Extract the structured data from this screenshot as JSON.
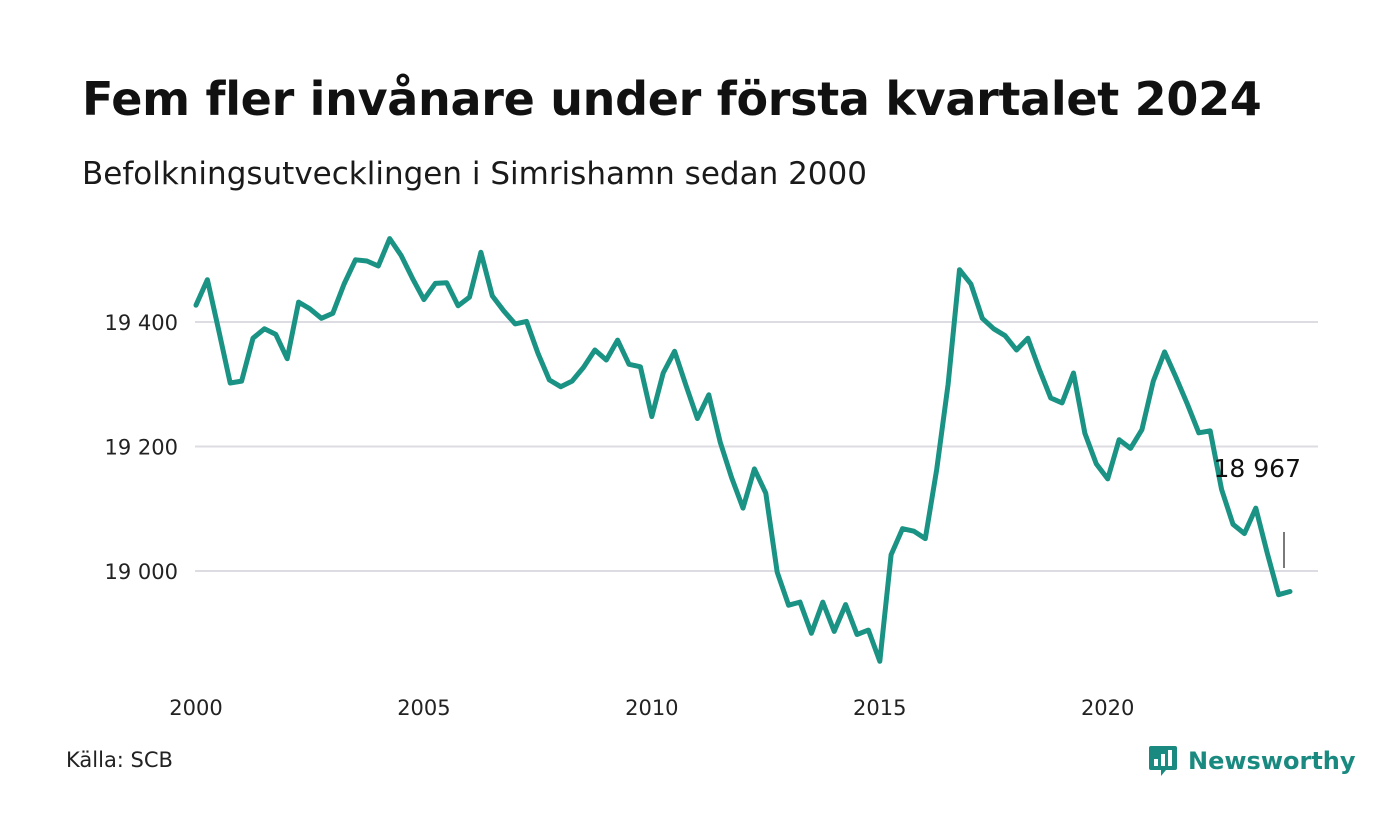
{
  "header": {
    "title": "Fem fler invånare under första kvartalet 2024",
    "subtitle": "Befolkningsutvecklingen i Simrishamn sedan 2000"
  },
  "footer": {
    "source": "Källa: SCB",
    "brand": "Newsworthy",
    "brand_icon": "bar-chart-speech-bubble-icon"
  },
  "colors": {
    "line": "#1a9384",
    "grid": "#dcdce2",
    "brand": "#1a8a80"
  },
  "chart_data": {
    "type": "line",
    "title": "Fem fler invånare under första kvartalet 2024",
    "subtitle": "Befolkningsutvecklingen i Simrishamn sedan 2000",
    "xlabel": "",
    "ylabel": "",
    "x_unit": "quarter",
    "xlim": [
      2000.0,
      2024.0
    ],
    "ylim": [
      18840,
      19570
    ],
    "x_ticks": [
      2000,
      2005,
      2010,
      2015,
      2020
    ],
    "x_tick_labels": [
      "2000",
      "2005",
      "2010",
      "2015",
      "2020"
    ],
    "y_ticks": [
      19000,
      19200,
      19400
    ],
    "y_tick_labels": [
      "19 000",
      "19 200",
      "19 400"
    ],
    "grid": "horizontal",
    "legend": "none",
    "end_label": "18 967",
    "series": [
      {
        "start": "2000 Q1",
        "values": [
          19427,
          19468,
          19386,
          19302,
          19305,
          19374,
          19389,
          19380,
          19341,
          19432,
          19421,
          19406,
          19414,
          19461,
          19500,
          19498,
          19490,
          19534,
          19507,
          19470,
          19436,
          19462,
          19463,
          19426,
          19440,
          19512,
          19442,
          19418,
          19397,
          19401,
          19350,
          19307,
          19296,
          19305,
          19327,
          19355,
          19339,
          19371,
          19332,
          19328,
          19248,
          19318,
          19353,
          19298,
          19245,
          19283,
          19207,
          19150,
          19101,
          19164,
          19125,
          18998,
          18945,
          18950,
          18900,
          18950,
          18903,
          18946,
          18898,
          18905,
          18855,
          19026,
          19068,
          19064,
          19052,
          19163,
          19300,
          19484,
          19461,
          19406,
          19389,
          19378,
          19355,
          19374,
          19324,
          19278,
          19270,
          19318,
          19221,
          19172,
          19148,
          19211,
          19197,
          19227,
          19305,
          19352,
          19311,
          19268,
          19222,
          19225,
          19131,
          19075,
          19060,
          19101,
          19029,
          18962,
          18967
        ]
      }
    ]
  }
}
